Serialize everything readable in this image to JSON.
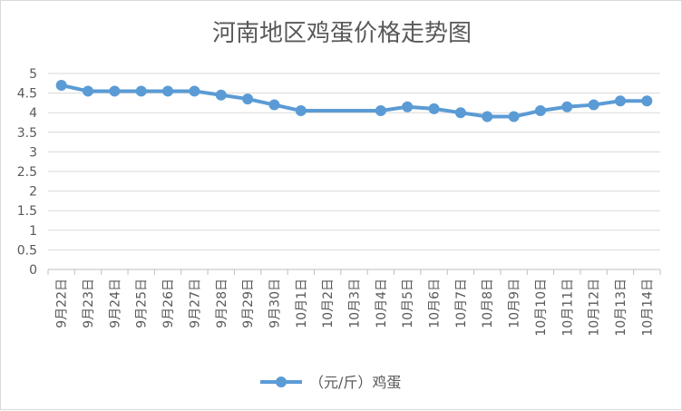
{
  "chart_data": {
    "type": "line",
    "title": "河南地区鸡蛋价格走势图",
    "xlabel": "",
    "ylabel": "",
    "categories": [
      "9月22日",
      "9月23日",
      "9月24日",
      "9月25日",
      "9月26日",
      "9月27日",
      "9月28日",
      "9月29日",
      "9月30日",
      "10月1日",
      "10月2日",
      "10月3日",
      "10月4日",
      "10月5日",
      "10月6日",
      "10月7日",
      "10月8日",
      "10月9日",
      "10月10日",
      "10月11日",
      "10月12日",
      "10月13日",
      "10月14日"
    ],
    "series": [
      {
        "name": "（元/斤）鸡蛋",
        "values": [
          4.7,
          4.55,
          4.55,
          4.55,
          4.55,
          4.55,
          4.45,
          4.35,
          4.2,
          4.05,
          null,
          null,
          4.05,
          4.15,
          4.1,
          4.0,
          3.9,
          3.9,
          4.05,
          4.15,
          4.2,
          4.3,
          4.3
        ]
      }
    ],
    "y_ticks": [
      "0",
      "0.5",
      "1",
      "1.5",
      "2",
      "2.5",
      "3",
      "3.5",
      "4",
      "4.5",
      "5"
    ],
    "ylim": [
      0,
      5
    ],
    "grid": true,
    "legend_position": "bottom",
    "colors": {
      "series": "#5b9bd5",
      "grid": "#d9d9d9",
      "text": "#595959",
      "axis": "#bfbfbf"
    }
  }
}
